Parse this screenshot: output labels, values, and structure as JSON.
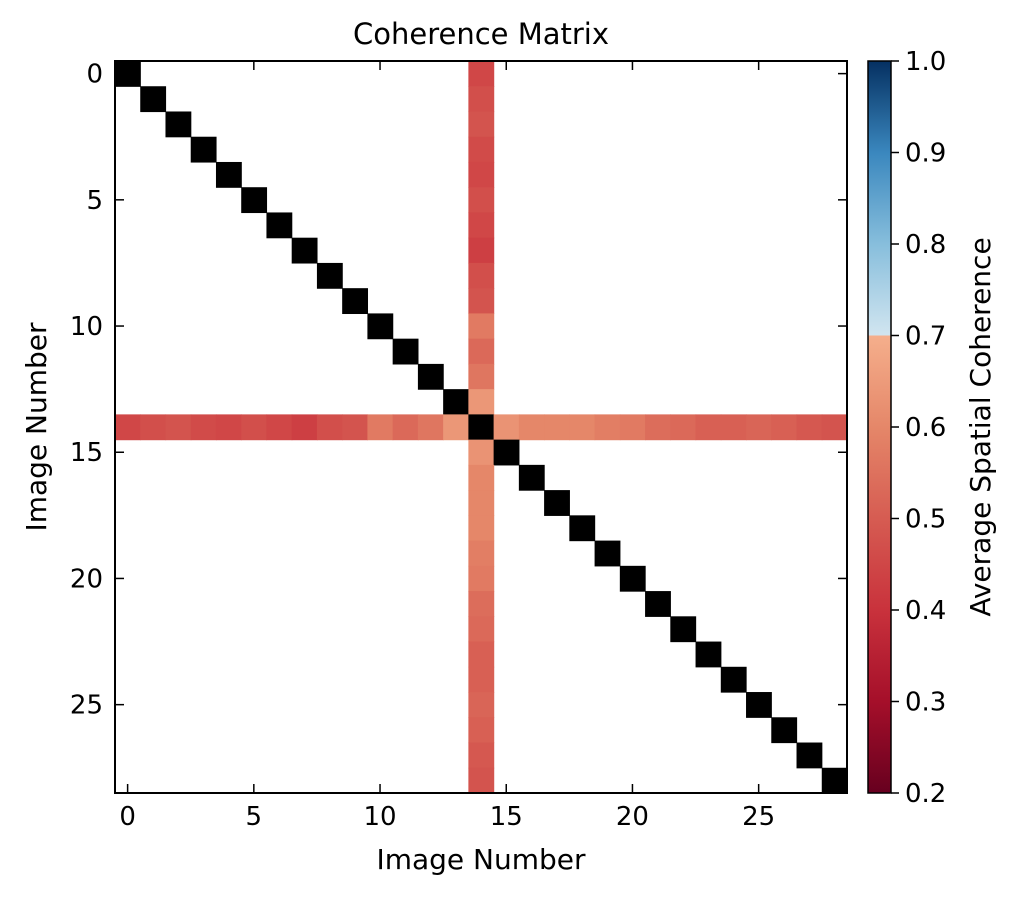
{
  "chart_data": {
    "type": "heatmap",
    "title": "Coherence Matrix",
    "xlabel": "Image Number",
    "ylabel": "Image Number",
    "n": 29,
    "x_ticks": [
      0,
      5,
      10,
      15,
      20,
      25
    ],
    "y_ticks": [
      0,
      5,
      10,
      15,
      20,
      25
    ],
    "highlight_index": 14,
    "diagonal_value": 1.0,
    "diagonal_color": "#000000",
    "empty_color": "#ffffff",
    "cross_values": [
      0.45,
      0.47,
      0.48,
      0.46,
      0.45,
      0.47,
      0.45,
      0.43,
      0.47,
      0.48,
      0.57,
      0.53,
      0.56,
      0.64,
      1.0,
      0.63,
      0.6,
      0.6,
      0.6,
      0.58,
      0.57,
      0.54,
      0.53,
      0.51,
      0.51,
      0.52,
      0.51,
      0.49,
      0.48
    ],
    "colorbar": {
      "label": "Average Spatial Coherence",
      "min": 0.2,
      "max": 1.0,
      "ticks": [
        "0.2",
        "0.3",
        "0.4",
        "0.5",
        "0.6",
        "0.7",
        "0.8",
        "0.9",
        "1.0"
      ],
      "color_stops": [
        {
          "value": 0.2,
          "color": "#67001f"
        },
        {
          "value": 0.3,
          "color": "#a50f2a"
        },
        {
          "value": 0.4,
          "color": "#c9323c"
        },
        {
          "value": 0.5,
          "color": "#d65c52"
        },
        {
          "value": 0.6,
          "color": "#e58769"
        },
        {
          "value": 0.7,
          "color": "#f5af8c"
        },
        {
          "value": 0.7001,
          "color": "#d1e5f0"
        },
        {
          "value": 0.8,
          "color": "#87bedc"
        },
        {
          "value": 0.9,
          "color": "#3a87be"
        },
        {
          "value": 1.0,
          "color": "#053061"
        }
      ]
    }
  }
}
